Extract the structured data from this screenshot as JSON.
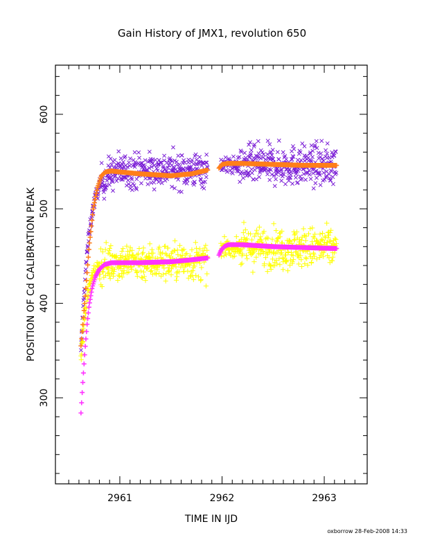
{
  "chart_data": {
    "type": "scatter",
    "title": "Gain History of JMX1, revolution 650",
    "xlabel": "TIME IN IJD",
    "ylabel": "POSITION OF Cd CALIBRATION PEAK",
    "xlim": [
      2960.37,
      2963.42
    ],
    "ylim": [
      209,
      652
    ],
    "x_ticks": [
      2961,
      2962,
      2963
    ],
    "x_tick_labels": [
      "2961",
      "2962",
      "2963"
    ],
    "y_ticks": [
      300,
      400,
      500,
      600
    ],
    "y_tick_labels": [
      "300",
      "400",
      "500",
      "600"
    ],
    "grid": false,
    "legend": "none",
    "footer": "oxborrow 28-Feb-2008 14:33",
    "colors": {
      "scatter_x": "#7b1fd6",
      "scatter_plus": "#ffff00",
      "fit_upper": "#ff7f1a",
      "fit_lower": "#ff33ff"
    },
    "series": [
      {
        "marker": "x",
        "color": "#7b1fd6",
        "segments": [
          {
            "x_start": 2960.62,
            "x_end": 2961.86,
            "rise_from": 345,
            "plateau": 541,
            "rise_width": 0.075,
            "noise": 13
          },
          {
            "x_start": 2961.99,
            "x_end": 2963.12,
            "rise_from": 548,
            "plateau": 546,
            "rise_width": 0.02,
            "noise": 15
          }
        ]
      },
      {
        "marker": "+",
        "color": "#ffff00",
        "segments": [
          {
            "x_start": 2960.62,
            "x_end": 2961.86,
            "rise_from": 340,
            "plateau": 444,
            "rise_width": 0.06,
            "noise": 14
          },
          {
            "x_start": 2961.99,
            "x_end": 2963.12,
            "rise_from": 455,
            "plateau": 459,
            "rise_width": 0.02,
            "noise": 15
          }
        ]
      },
      {
        "marker": "fit",
        "color": "#ff7f1a",
        "segments": [
          {
            "x": [
              2960.62,
              2960.66,
              2960.7,
              2960.74,
              2960.78,
              2960.82,
              2960.86,
              2960.92,
              2961.0,
              2961.2,
              2961.5,
              2961.7,
              2961.86
            ],
            "y": [
              355,
              405,
              460,
              500,
              522,
              535,
              539,
              540,
              539,
              537,
              535,
              537,
              541
            ]
          },
          {
            "x": [
              2961.97,
              2962.0,
              2962.05,
              2962.2,
              2962.5,
              2962.8,
              2963.12
            ],
            "y": [
              543,
              547,
              548,
              548,
              547,
              546,
              546
            ]
          }
        ]
      },
      {
        "marker": "fit",
        "color": "#ff33ff",
        "segments": [
          {
            "x": [
              2960.62,
              2960.64,
              2960.66,
              2960.68,
              2960.7,
              2960.73,
              2960.76,
              2960.8,
              2960.85,
              2960.92,
              2961.0,
              2961.2,
              2961.5,
              2961.7,
              2961.86
            ],
            "y": [
              284,
              320,
              352,
              378,
              398,
              417,
              428,
              436,
              441,
              443,
              443,
              443,
              444,
              446,
              448
            ]
          },
          {
            "x": [
              2961.97,
              2961.99,
              2962.02,
              2962.06,
              2962.2,
              2962.5,
              2962.8,
              2963.12
            ],
            "y": [
              451,
              456,
              460,
              462,
              462,
              460,
              459,
              458
            ]
          }
        ]
      }
    ]
  }
}
